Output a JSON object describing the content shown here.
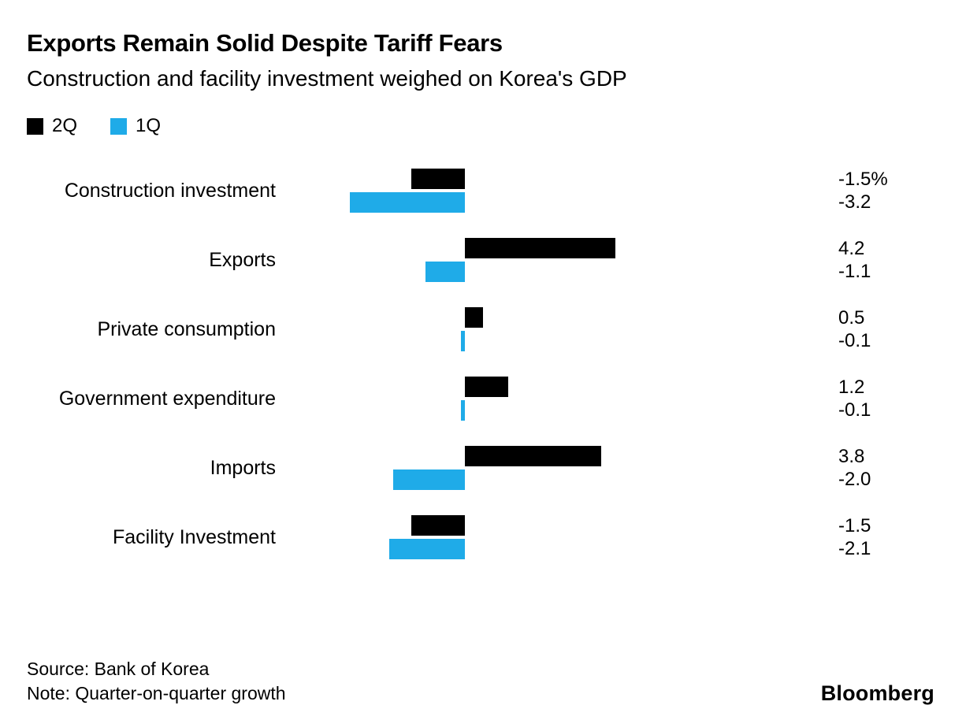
{
  "header": {
    "title": "Exports Remain Solid Despite Tariff Fears",
    "subtitle": "Construction and facility investment weighed on Korea's GDP"
  },
  "legend": [
    {
      "label": "2Q",
      "color": "#000000"
    },
    {
      "label": "1Q",
      "color": "#1fabe8"
    }
  ],
  "chart_data": {
    "type": "bar",
    "orientation": "horizontal",
    "title": "Exports Remain Solid Despite Tariff Fears",
    "subtitle": "Construction and facility investment weighed on Korea's GDP",
    "unit": "%",
    "xlim": [
      -5,
      10
    ],
    "grid": false,
    "legend_position": "top-left",
    "categories": [
      "Construction investment",
      "Exports",
      "Private consumption",
      "Government expenditure",
      "Imports",
      "Facility Investment"
    ],
    "series": [
      {
        "name": "2Q",
        "color": "#000000",
        "values": [
          -1.5,
          4.2,
          0.5,
          1.2,
          3.8,
          -1.5
        ]
      },
      {
        "name": "1Q",
        "color": "#1fabe8",
        "values": [
          -3.2,
          -1.1,
          -0.1,
          -0.1,
          -2.0,
          -2.1
        ]
      }
    ],
    "value_labels": [
      [
        "-1.5%",
        "-3.2"
      ],
      [
        "4.2",
        "-1.1"
      ],
      [
        "0.5",
        "-0.1"
      ],
      [
        "1.2",
        "-0.1"
      ],
      [
        "3.8",
        "-2.0"
      ],
      [
        "-1.5",
        "-2.1"
      ]
    ]
  },
  "footer": {
    "source": "Source: Bank of Korea",
    "note": "Note: Quarter-on-quarter growth",
    "logo": "Bloomberg"
  }
}
